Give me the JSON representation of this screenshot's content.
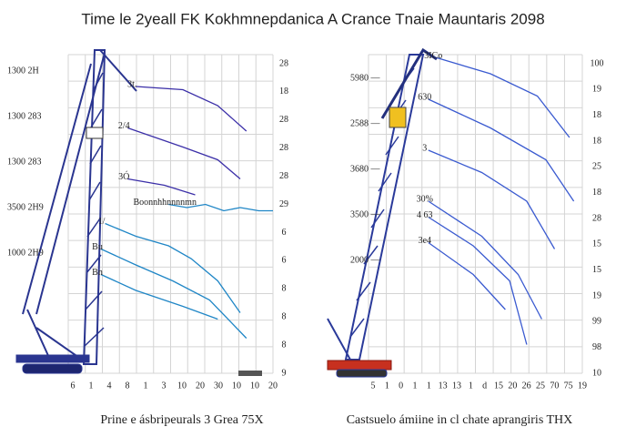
{
  "title": "Time le 2yeall FK Kokhmnepdanica A Crance Tnaie Mauntaris 2098",
  "chart_data": [
    {
      "type": "line",
      "caption": "Prine e ásbripeurals 3 Grea 75X",
      "xlim": [
        0,
        100
      ],
      "ylim": [
        0,
        100
      ],
      "grid": true,
      "y_labels": [
        "1300 2H",
        "1300 283",
        "1300 283",
        "3500 2H9",
        "1000 2H9"
      ],
      "y2_labels": [
        "28",
        "18",
        "28",
        "28",
        "28",
        "29",
        "6",
        "6",
        "8",
        "8",
        "8",
        "9"
      ],
      "x_labels": [
        "6",
        "1",
        "4",
        "8",
        "1",
        "3",
        "10",
        "20",
        "30",
        "10",
        "10",
        "20"
      ],
      "series": [
        {
          "name": "3t.",
          "color": "#3b2fa8",
          "x": [
            33,
            56,
            73,
            87
          ],
          "values": [
            90,
            89,
            84,
            76
          ]
        },
        {
          "name": "2/4",
          "color": "#3b2fa8",
          "x": [
            29,
            56,
            73,
            84
          ],
          "values": [
            77,
            71,
            67,
            61
          ]
        },
        {
          "name": "3Ó",
          "color": "#3b2fa8",
          "x": [
            29,
            47,
            62
          ],
          "values": [
            61,
            59,
            56
          ]
        },
        {
          "name": "Boonnhhnnnnmn",
          "color": "#1f86c6",
          "x": [
            49,
            58,
            67,
            76,
            84,
            93,
            100
          ],
          "values": [
            53,
            52,
            53,
            51,
            52,
            51,
            51
          ]
        },
        {
          "name": "1/",
          "color": "#1f86c6",
          "x": [
            18,
            33,
            49,
            60,
            73,
            84
          ],
          "values": [
            47,
            43,
            40,
            36,
            29,
            19
          ]
        },
        {
          "name": "Bu",
          "color": "#1f86c6",
          "x": [
            16,
            33,
            51,
            69,
            87
          ],
          "values": [
            39,
            34,
            29,
            23,
            11
          ]
        },
        {
          "name": "Bn",
          "color": "#1f86c6",
          "x": [
            16,
            33,
            56,
            73
          ],
          "values": [
            31,
            26,
            21,
            17
          ]
        }
      ]
    },
    {
      "type": "line",
      "caption": "Castsuelo ámiine in cl chate aprangiris THX",
      "xlim": [
        0,
        100
      ],
      "ylim": [
        0,
        100
      ],
      "grid": true,
      "y_labels": [
        "5980 —",
        "2588 —",
        "3680 —",
        "3500 —",
        "2000 —"
      ],
      "y2_labels": [
        "100",
        "19",
        "18",
        "18",
        "25",
        "18",
        "28",
        "15",
        "15",
        "19",
        "99",
        "98",
        "10"
      ],
      "x_labels": [
        "5",
        "1",
        "0",
        "1",
        "1",
        "13",
        "13",
        "1",
        "d",
        "15",
        "20",
        "26",
        "25",
        "70",
        "75",
        "19"
      ],
      "series": [
        {
          "name": "3ICo",
          "color": "#3a5ad0",
          "x": [
            32,
            57,
            79,
            94
          ],
          "values": [
            99,
            94,
            87,
            74
          ]
        },
        {
          "name": "630",
          "color": "#3a5ad0",
          "x": [
            28,
            57,
            83,
            96
          ],
          "values": [
            86,
            77,
            67,
            54
          ]
        },
        {
          "name": "3",
          "color": "#3a5ad0",
          "x": [
            28,
            53,
            74,
            87
          ],
          "values": [
            70,
            63,
            54,
            39
          ]
        },
        {
          "name": "30%",
          "color": "#3a5ad0",
          "x": [
            28,
            53,
            70,
            81
          ],
          "values": [
            54,
            43,
            31,
            17
          ]
        },
        {
          "name": "4 63",
          "color": "#3a5ad0",
          "x": [
            28,
            49,
            66,
            74
          ],
          "values": [
            49,
            40,
            29,
            9
          ]
        },
        {
          "name": "3e4",
          "color": "#3a5ad0",
          "x": [
            28,
            49,
            64
          ],
          "values": [
            41,
            31,
            20
          ]
        }
      ]
    }
  ]
}
